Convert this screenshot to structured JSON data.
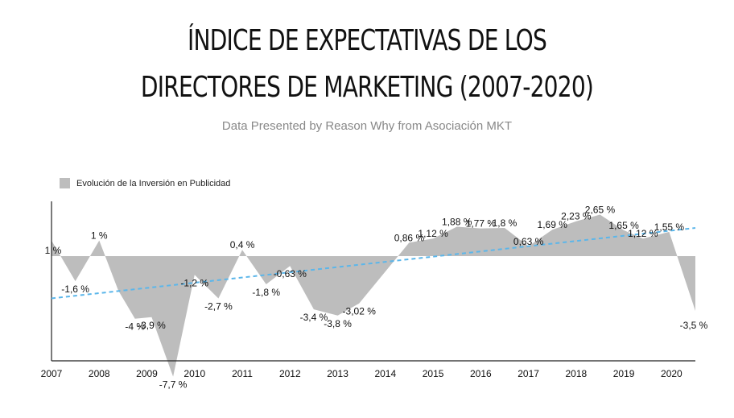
{
  "title_line1": "ÍNDICE DE EXPECTATIVAS DE LOS",
  "title_line2": "DIRECTORES DE MARKETING (2007-2020)",
  "subtitle": "Data Presented by Reason Why from Asociación MKT",
  "legend_label": "Evolución de la Inversión en Publicidad",
  "colors": {
    "area": "#bdbdbd",
    "trend": "#5bb6ea",
    "axis": "#222222"
  },
  "chart_data": {
    "type": "area",
    "title": "ÍNDICE DE EXPECTATIVAS DE LOS DIRECTORES DE MARKETING (2007-2020)",
    "series_name": "Evolución de la Inversión en Publicidad",
    "ylim": [
      -8.5,
      3.5
    ],
    "xlim": [
      2007,
      2020.5
    ],
    "x_ticks": [
      2007,
      2008,
      2009,
      2010,
      2011,
      2012,
      2013,
      2014,
      2015,
      2016,
      2017,
      2018,
      2019,
      2020
    ],
    "points": [
      {
        "x": 2007.0,
        "y": 1.0,
        "label": "1 %"
      },
      {
        "x": 2007.5,
        "y": -1.6,
        "label": "-1,6 %"
      },
      {
        "x": 2008.0,
        "y": 1.0,
        "label": "1 %"
      },
      {
        "x": 2008.4,
        "y": -2.2,
        "label": ""
      },
      {
        "x": 2008.75,
        "y": -4.0,
        "label": "-4 %"
      },
      {
        "x": 2009.1,
        "y": -3.9,
        "label": "-3,9 %"
      },
      {
        "x": 2009.55,
        "y": -7.7,
        "label": "-7,7 %"
      },
      {
        "x": 2010.0,
        "y": -1.2,
        "label": "-1,2 %"
      },
      {
        "x": 2010.5,
        "y": -2.7,
        "label": "-2,7 %"
      },
      {
        "x": 2011.0,
        "y": 0.4,
        "label": "0,4 %"
      },
      {
        "x": 2011.5,
        "y": -1.8,
        "label": "-1,8 %"
      },
      {
        "x": 2012.0,
        "y": -0.63,
        "label": "-0,63 %"
      },
      {
        "x": 2012.5,
        "y": -3.4,
        "label": "-3,4 %"
      },
      {
        "x": 2013.0,
        "y": -3.8,
        "label": "-3,8 %"
      },
      {
        "x": 2013.45,
        "y": -3.02,
        "label": "-3,02 %"
      },
      {
        "x": 2014.5,
        "y": 0.86,
        "label": "0,86 %"
      },
      {
        "x": 2015.0,
        "y": 1.12,
        "label": "1,12 %"
      },
      {
        "x": 2015.5,
        "y": 1.88,
        "label": "1,88 %"
      },
      {
        "x": 2016.0,
        "y": 1.77,
        "label": "1,77 %"
      },
      {
        "x": 2016.5,
        "y": 1.8,
        "label": "1,8 %"
      },
      {
        "x": 2017.0,
        "y": 0.63,
        "label": "0,63 %"
      },
      {
        "x": 2017.5,
        "y": 1.69,
        "label": "1,69 %"
      },
      {
        "x": 2018.0,
        "y": 2.23,
        "label": "2,23 %"
      },
      {
        "x": 2018.5,
        "y": 2.65,
        "label": "2,65 %"
      },
      {
        "x": 2019.0,
        "y": 1.65,
        "label": "1,65 %"
      },
      {
        "x": 2019.4,
        "y": 1.12,
        "label": "1,12 %"
      },
      {
        "x": 2019.95,
        "y": 1.55,
        "label": "1,55 %"
      },
      {
        "x": 2020.5,
        "y": -3.5,
        "label": "-3,5 %"
      }
    ],
    "trendline": {
      "start": [
        2007,
        -2.7
      ],
      "end": [
        2020.5,
        1.8
      ]
    }
  }
}
